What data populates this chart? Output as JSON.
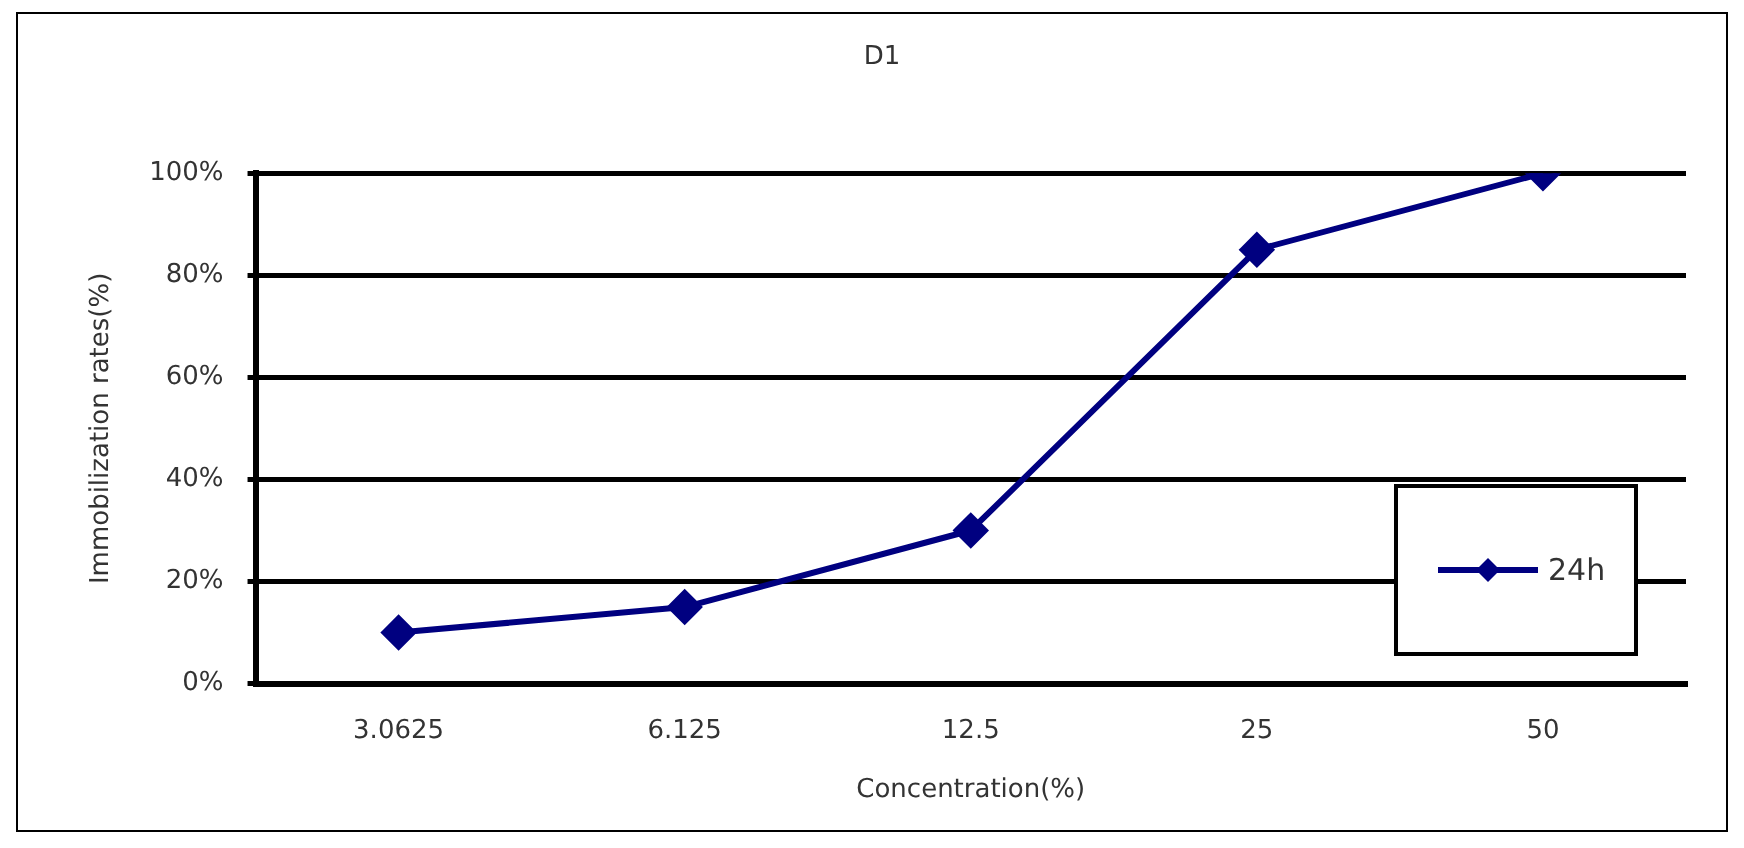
{
  "chart_data": {
    "type": "line",
    "title": "D1",
    "xlabel": "Concentration(%)",
    "ylabel": "Immobilization rates(%)",
    "categories": [
      "3.0625",
      "6.125",
      "12.5",
      "25",
      "50"
    ],
    "series": [
      {
        "name": "24h",
        "color": "#000080",
        "values": [
          10,
          15,
          30,
          85,
          100
        ]
      }
    ],
    "ylim": [
      0,
      100
    ],
    "yticks": [
      {
        "value": 0,
        "label": "0%"
      },
      {
        "value": 20,
        "label": "20%"
      },
      {
        "value": 40,
        "label": "40%"
      },
      {
        "value": 60,
        "label": "60%"
      },
      {
        "value": 80,
        "label": "80%"
      },
      {
        "value": 100,
        "label": "100%"
      }
    ],
    "grid": "y",
    "legend": "bottom right",
    "marker": "diamond",
    "line_style": "solid"
  }
}
